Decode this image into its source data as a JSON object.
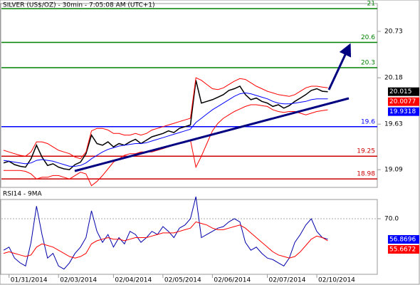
{
  "chart_data": [
    {
      "type": "line",
      "title": "SILVER (US$/OZ) - 30min - 7:05:08 AM (UTC+1)",
      "categories": [
        null,
        "01/31/2014",
        null,
        null,
        null,
        null,
        null,
        null,
        null,
        null,
        "02/03/2014",
        null,
        null,
        null,
        null,
        null,
        null,
        null,
        null,
        null,
        "02/04/2014",
        null,
        null,
        null,
        null,
        null,
        null,
        null,
        null,
        "02/05/2014",
        null,
        null,
        null,
        null,
        null,
        null,
        null,
        null,
        "02/06/2014",
        null,
        null,
        null,
        null,
        null,
        null,
        null,
        null,
        null,
        "02/07/2014",
        null,
        null,
        null,
        null,
        null,
        null,
        null,
        null,
        "02/10/2014",
        null,
        null
      ],
      "ylim": [
        18.88,
        21.06
      ],
      "yticks": [
        19.09,
        19.63,
        20.18,
        20.73
      ],
      "series": [
        {
          "color": "#000000",
          "values": [
            19.17,
            19.19,
            19.15,
            19.13,
            19.12,
            19.22,
            19.38,
            19.24,
            19.14,
            19.16,
            19.12,
            19.1,
            19.09,
            19.15,
            19.18,
            19.28,
            19.5,
            19.4,
            19.38,
            19.42,
            19.36,
            19.4,
            19.38,
            19.42,
            19.45,
            19.4,
            19.44,
            19.48,
            19.5,
            19.52,
            19.55,
            19.53,
            19.58,
            19.6,
            19.62,
            20.15,
            19.88,
            19.9,
            19.92,
            19.95,
            19.98,
            20.03,
            20.05,
            20.08,
            19.98,
            19.92,
            19.94,
            19.9,
            19.88,
            19.84,
            19.86,
            19.82,
            19.85,
            19.9,
            19.94,
            19.98,
            20.03,
            20.05,
            20.02,
            20.015
          ]
        },
        {
          "color": "#0000ff",
          "values": [
            19.2,
            19.19,
            19.18,
            19.17,
            19.16,
            19.17,
            19.2,
            19.21,
            19.2,
            19.19,
            19.17,
            19.15,
            19.13,
            19.13,
            19.14,
            19.17,
            19.22,
            19.26,
            19.3,
            19.33,
            19.35,
            19.37,
            19.38,
            19.39,
            19.4,
            19.4,
            19.41,
            19.43,
            19.45,
            19.47,
            19.49,
            19.51,
            19.53,
            19.55,
            19.57,
            19.65,
            19.7,
            19.75,
            19.8,
            19.84,
            19.88,
            19.92,
            19.96,
            19.99,
            20.0,
            19.99,
            19.97,
            19.95,
            19.93,
            19.9,
            19.88,
            19.87,
            19.87,
            19.88,
            19.89,
            19.9,
            19.92,
            19.93,
            19.93,
            19.93
          ]
        },
        {
          "color": "#ff0000",
          "values": [
            19.32,
            19.3,
            19.28,
            19.26,
            19.25,
            19.3,
            19.42,
            19.42,
            19.4,
            19.36,
            19.32,
            19.3,
            19.28,
            19.24,
            19.22,
            19.3,
            19.55,
            19.58,
            19.58,
            19.56,
            19.52,
            19.52,
            19.5,
            19.5,
            19.52,
            19.5,
            19.52,
            19.56,
            19.58,
            19.6,
            19.62,
            19.64,
            19.66,
            19.68,
            19.7,
            20.18,
            20.15,
            20.1,
            20.05,
            20.04,
            20.06,
            20.1,
            20.14,
            20.17,
            20.16,
            20.12,
            20.08,
            20.05,
            20.02,
            20.0,
            19.98,
            19.97,
            19.96,
            19.98,
            20.02,
            20.06,
            20.08,
            20.08,
            20.07,
            20.06
          ]
        },
        {
          "color": "#ff0000",
          "values": [
            19.08,
            19.08,
            19.08,
            19.08,
            19.07,
            19.04,
            18.98,
            19.0,
            19.0,
            19.02,
            19.02,
            19.0,
            18.98,
            19.02,
            19.06,
            19.04,
            18.9,
            18.95,
            19.02,
            19.1,
            19.18,
            19.22,
            19.26,
            19.28,
            19.28,
            19.3,
            19.3,
            19.3,
            19.32,
            19.34,
            19.36,
            19.38,
            19.4,
            19.42,
            19.44,
            19.12,
            19.25,
            19.4,
            19.55,
            19.64,
            19.7,
            19.74,
            19.78,
            19.81,
            19.84,
            19.86,
            19.86,
            19.85,
            19.84,
            19.8,
            19.78,
            19.77,
            19.78,
            19.78,
            19.76,
            19.74,
            19.76,
            19.78,
            19.79,
            19.8
          ]
        }
      ],
      "levels": [
        {
          "value": 21,
          "color": "#008000"
        },
        {
          "value": 20.6,
          "color": "#008000"
        },
        {
          "value": 20.3,
          "color": "#008000"
        },
        {
          "value": 19.6,
          "color": "#0000ff"
        },
        {
          "value": 19.25,
          "color": "#cc0000"
        },
        {
          "value": 18.98,
          "color": "#cc0000"
        }
      ],
      "markers": [
        {
          "value": 20.015,
          "color": "#000000"
        },
        {
          "value": 20.0077,
          "color": "#ff0000"
        },
        {
          "value": 19.9318,
          "color": "#0000ff"
        }
      ]
    },
    {
      "type": "line",
      "title": "RSI14 - 9MA",
      "ylim": [
        34.7,
        82.2
      ],
      "yticks": [
        {
          "value": 70,
          "label": "70.0"
        }
      ],
      "series": [
        {
          "color": "#0000aa",
          "values": [
            50,
            52,
            45,
            42,
            40,
            55,
            78,
            60,
            45,
            48,
            40,
            38,
            42,
            48,
            52,
            58,
            75,
            62,
            55,
            60,
            52,
            58,
            54,
            62,
            60,
            55,
            58,
            62,
            60,
            65,
            62,
            58,
            64,
            66,
            70,
            84,
            58,
            60,
            62,
            64,
            65,
            68,
            70,
            68,
            55,
            50,
            52,
            48,
            45,
            44,
            42,
            40,
            45,
            55,
            60,
            66,
            70,
            62,
            58,
            57
          ]
        },
        {
          "color": "#ff0000",
          "values": [
            48,
            49,
            48,
            47,
            46,
            47,
            52,
            54,
            53,
            52,
            50,
            48,
            46,
            45,
            46,
            48,
            54,
            56,
            57,
            58,
            57,
            57,
            56,
            57,
            58,
            58,
            58,
            59,
            60,
            61,
            61,
            61,
            62,
            63,
            64,
            68,
            67,
            66,
            64,
            63,
            63,
            64,
            65,
            66,
            64,
            61,
            58,
            55,
            52,
            49,
            47,
            46,
            45,
            46,
            49,
            53,
            57,
            59,
            58,
            56
          ]
        }
      ],
      "markers": [
        {
          "value": 56.8696,
          "color": "#0000ff"
        },
        {
          "value": 55.6672,
          "color": "#ff0000"
        }
      ]
    }
  ]
}
